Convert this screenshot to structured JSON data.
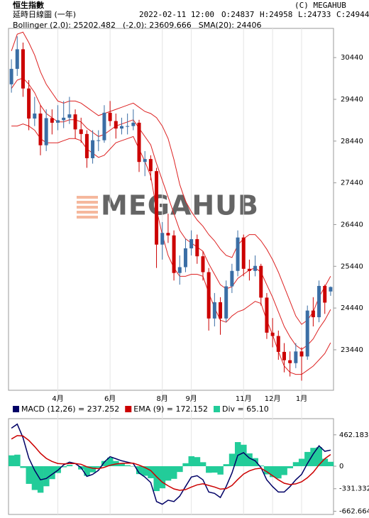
{
  "header": {
    "title": "恒生指數",
    "subtitle": "延時日線圖 (一年)",
    "datetime": "2022-02-11 12:00",
    "open": "O:24837",
    "high": "H:24958",
    "low": "L:24733",
    "close": "C:24944",
    "copyright": "(C) MEGAHUB"
  },
  "chart_data": [
    {
      "type": "candlestick",
      "watermark": "MEGAHUB",
      "categories": [
        null,
        null,
        null,
        null,
        null,
        null,
        null,
        null,
        "4月",
        null,
        null,
        null,
        null,
        null,
        null,
        null,
        null,
        "6月",
        null,
        null,
        null,
        null,
        null,
        null,
        null,
        null,
        "8月",
        null,
        null,
        null,
        null,
        "9月",
        null,
        null,
        null,
        null,
        null,
        null,
        null,
        null,
        "11月",
        null,
        null,
        null,
        null,
        "12月",
        null,
        null,
        null,
        null,
        "1月",
        null,
        null,
        null,
        null,
        null
      ],
      "open": [
        29800,
        30170,
        30640,
        29700,
        28980,
        29100,
        28340,
        28990,
        28880,
        28940,
        29000,
        29080,
        28720,
        28610,
        28030,
        28460,
        28460,
        29120,
        28920,
        28740,
        28800,
        28800,
        28880,
        27940,
        28010,
        27720,
        25960,
        26240,
        26180,
        25280,
        25420,
        25870,
        26090,
        25680,
        25300,
        24190,
        24580,
        24190,
        24960,
        25330,
        26130,
        25380,
        25330,
        25450,
        24690,
        23850,
        23770,
        23390,
        23190,
        23120,
        23400,
        23280,
        24380,
        24220,
        24970,
        24837
      ],
      "high": [
        30400,
        30950,
        30800,
        29900,
        29500,
        29300,
        29200,
        29200,
        29300,
        29400,
        29500,
        29200,
        29000,
        28700,
        28700,
        28700,
        29300,
        29400,
        29100,
        29000,
        29100,
        29200,
        28950,
        28200,
        28100,
        27800,
        26500,
        26700,
        26300,
        25700,
        26100,
        26300,
        26200,
        25800,
        25400,
        24800,
        24700,
        25100,
        25500,
        26300,
        26200,
        25600,
        25700,
        25500,
        24800,
        24200,
        23900,
        23600,
        23400,
        23600,
        23500,
        24500,
        24700,
        25100,
        25000,
        24958
      ],
      "low": [
        29600,
        30000,
        29500,
        28700,
        28800,
        28100,
        28200,
        28600,
        28700,
        28750,
        28850,
        28500,
        28400,
        27800,
        27900,
        28200,
        28400,
        28800,
        28500,
        28600,
        28600,
        28700,
        27700,
        27600,
        27500,
        25400,
        25600,
        26000,
        25100,
        25000,
        25300,
        25700,
        25500,
        25100,
        23900,
        24000,
        23800,
        24100,
        24800,
        25200,
        25200,
        25100,
        25200,
        24500,
        23700,
        23500,
        23200,
        22900,
        22800,
        23000,
        22700,
        23200,
        24000,
        24100,
        24300,
        24733
      ],
      "close": [
        30170,
        30640,
        29700,
        28980,
        29100,
        28340,
        28990,
        28880,
        28940,
        29000,
        29080,
        28720,
        28610,
        28030,
        28460,
        28460,
        29120,
        28920,
        28740,
        28800,
        28800,
        28880,
        27940,
        28010,
        27720,
        25960,
        26240,
        26180,
        25280,
        25420,
        25870,
        26090,
        25680,
        25300,
        24190,
        24580,
        24190,
        24960,
        25330,
        26130,
        25380,
        25330,
        25450,
        24690,
        23850,
        23770,
        23390,
        23190,
        23120,
        23400,
        23280,
        24380,
        24220,
        24970,
        24570,
        24944
      ],
      "up_color": "#3a6ea5",
      "down_color": "#cc0000",
      "bands": [
        {
          "name": "Bollinger (2.0): 25202.482",
          "color": "#dd2222",
          "values": [
            30600,
            31000,
            31050,
            30800,
            30500,
            30100,
            29800,
            29600,
            29400,
            29350,
            29400,
            29400,
            29350,
            29250,
            29150,
            29050,
            29100,
            29150,
            29200,
            29250,
            29300,
            29350,
            29250,
            29150,
            29100,
            29000,
            28800,
            28500,
            28000,
            27400,
            27000,
            26750,
            26550,
            26400,
            26200,
            26050,
            25850,
            25700,
            25650,
            25950,
            26100,
            26200,
            26200,
            26050,
            25850,
            25600,
            25300,
            24950,
            24600,
            24250,
            24050,
            24150,
            24350,
            24700,
            24950,
            25202.482
          ]
        },
        {
          "name": "(-2.0): 23609.666",
          "color": "#dd2222",
          "values": [
            28800,
            28800,
            28850,
            28800,
            28700,
            28500,
            28400,
            28400,
            28400,
            28450,
            28500,
            28500,
            28450,
            28250,
            28150,
            28050,
            28100,
            28250,
            28400,
            28450,
            28500,
            28550,
            28250,
            27950,
            27600,
            26800,
            26200,
            25700,
            25400,
            25200,
            25200,
            25250,
            25250,
            25200,
            24800,
            24450,
            24150,
            24100,
            24250,
            24350,
            24400,
            24500,
            24600,
            24550,
            24150,
            23800,
            23400,
            23050,
            22900,
            22850,
            22850,
            22950,
            23050,
            23200,
            23350,
            23609.666
          ]
        },
        {
          "name": "SMA(20): 24406",
          "color": "#dd2222",
          "values": [
            29700,
            29900,
            29950,
            29800,
            29600,
            29300,
            29100,
            29000,
            28900,
            28900,
            28950,
            28950,
            28900,
            28750,
            28650,
            28550,
            28600,
            28700,
            28800,
            28850,
            28900,
            28950,
            28750,
            28550,
            28350,
            27900,
            27500,
            27100,
            26700,
            26300,
            26100,
            26000,
            25900,
            25800,
            25500,
            25250,
            25000,
            24900,
            24950,
            25150,
            25250,
            25350,
            25400,
            25300,
            25000,
            24700,
            24350,
            24000,
            23750,
            23550,
            23450,
            23550,
            23700,
            23950,
            24150,
            24406
          ]
        }
      ],
      "ylim": [
        22470,
        31140
      ],
      "yticks": [
        23440,
        24440,
        25440,
        26440,
        27440,
        28440,
        29440,
        30440
      ]
    },
    {
      "type": "macd",
      "series": [
        {
          "name": "MACD (12,26) = 237.252",
          "color": "#000066",
          "values": [
            560,
            620,
            420,
            120,
            -60,
            -200,
            -180,
            -120,
            -60,
            20,
            60,
            40,
            -20,
            -150,
            -120,
            -60,
            60,
            140,
            110,
            80,
            60,
            40,
            -100,
            -160,
            -240,
            -520,
            -560,
            -500,
            -520,
            -440,
            -300,
            -160,
            -140,
            -200,
            -380,
            -400,
            -460,
            -300,
            -100,
            160,
            200,
            120,
            80,
            -20,
            -200,
            -300,
            -380,
            -380,
            -300,
            -200,
            -120,
            40,
            180,
            300,
            220,
            237.252
          ]
        },
        {
          "name": "EMA (9) = 172.152",
          "color": "#cc0000",
          "values": [
            400,
            450,
            445,
            380,
            290,
            190,
            115,
            70,
            40,
            35,
            40,
            40,
            28,
            -8,
            -30,
            -36,
            -17,
            14,
            33,
            42,
            46,
            45,
            16,
            -19,
            -63,
            -154,
            -235,
            -288,
            -334,
            -355,
            -344,
            -307,
            -274,
            -259,
            -283,
            -306,
            -337,
            -330,
            -284,
            -195,
            -116,
            -69,
            -39,
            -30,
            -80,
            -140,
            -200,
            -250,
            -270,
            -260,
            -230,
            -170,
            -90,
            20,
            110,
            172.152
          ]
        },
        {
          "name": "Div = 65.10",
          "color": "#22cc99",
          "values": [
            160,
            170,
            -25,
            -260,
            -350,
            -390,
            -295,
            -190,
            -100,
            -15,
            20,
            0,
            -48,
            -142,
            -90,
            -24,
            77,
            126,
            77,
            38,
            14,
            -5,
            -116,
            -141,
            -177,
            -366,
            -325,
            -212,
            -186,
            -85,
            44,
            147,
            134,
            59,
            -97,
            -94,
            -123,
            30,
            184,
            355,
            316,
            189,
            119,
            10,
            -120,
            -160,
            -180,
            -130,
            -30,
            60,
            110,
            210,
            270,
            280,
            110,
            65.1
          ]
        }
      ],
      "ylim": [
        -710,
        700
      ],
      "yticks": [
        462.183,
        0,
        -331.332,
        -662.664
      ]
    }
  ]
}
